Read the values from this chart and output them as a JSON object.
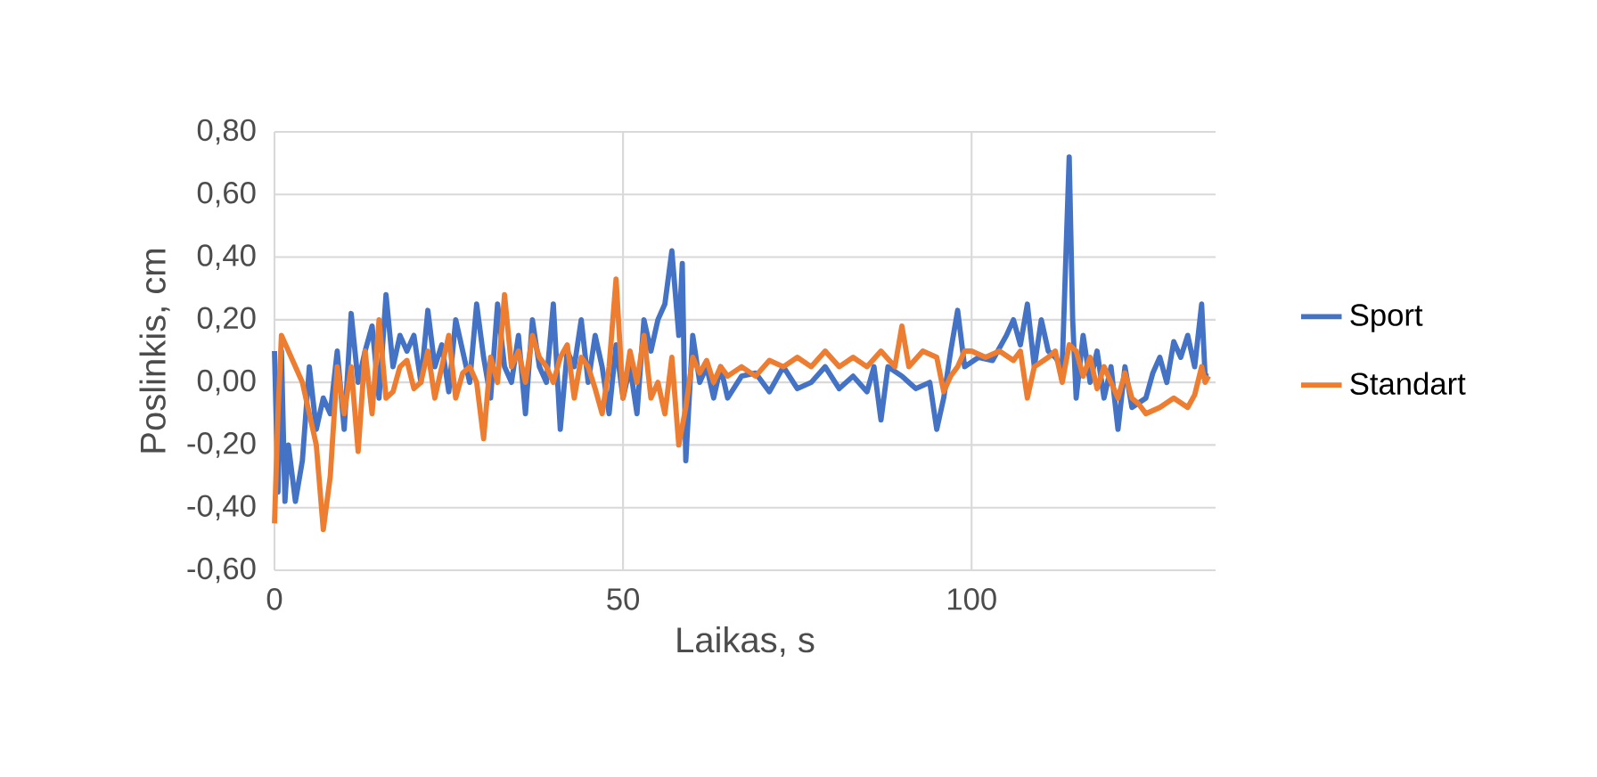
{
  "chart_data": {
    "type": "line",
    "xlabel": "Laikas, s",
    "ylabel": "Poslinkis, cm",
    "xlim": [
      0,
      135
    ],
    "xticks": [
      0,
      50,
      100
    ],
    "ylim": [
      -0.6,
      0.8
    ],
    "yticks": [
      {
        "value": -0.6,
        "label": "-0,60"
      },
      {
        "value": -0.4,
        "label": "-0,40"
      },
      {
        "value": -0.2,
        "label": "-0,20"
      },
      {
        "value": 0,
        "label": "0,00"
      },
      {
        "value": 0.2,
        "label": "0,20"
      },
      {
        "value": 0.4,
        "label": "0,40"
      },
      {
        "value": 0.6,
        "label": "0,60"
      },
      {
        "value": 0.8,
        "label": "0,80"
      }
    ],
    "grid": true,
    "legend": "right",
    "line_style": "solid",
    "marker": "none",
    "series": [
      {
        "name": "Sport",
        "color": "#4472c4",
        "x": [
          0,
          0.5,
          1,
          1.5,
          2,
          3,
          4,
          5,
          6,
          7,
          8,
          9,
          10,
          11,
          12,
          13,
          14,
          15,
          16,
          17,
          18,
          19,
          20,
          21,
          22,
          23,
          24,
          25,
          26,
          27,
          28,
          29,
          30,
          31,
          32,
          33,
          34,
          35,
          36,
          37,
          38,
          39,
          40,
          41,
          42,
          43,
          44,
          45,
          46,
          47,
          48,
          49,
          50,
          51,
          52,
          53,
          54,
          55,
          56,
          57,
          58,
          58.5,
          59,
          60,
          61,
          62,
          63,
          64,
          65,
          67,
          69,
          71,
          73,
          75,
          77,
          79,
          81,
          83,
          85,
          86,
          87,
          88,
          90,
          92,
          94,
          95,
          96,
          97,
          98,
          99,
          101,
          103,
          105,
          106,
          107,
          108,
          109,
          110,
          111,
          112,
          113,
          114,
          114.5,
          115,
          116,
          117,
          118,
          119,
          120,
          121,
          122,
          123,
          125,
          126,
          127,
          128,
          129,
          130,
          131,
          132,
          133,
          133.5,
          134
        ],
        "values": [
          0.1,
          -0.35,
          0.1,
          -0.38,
          -0.2,
          -0.38,
          -0.25,
          0.05,
          -0.15,
          -0.05,
          -0.1,
          0.1,
          -0.15,
          0.22,
          0.0,
          0.1,
          0.18,
          -0.05,
          0.28,
          0.05,
          0.15,
          0.1,
          0.15,
          0.0,
          0.23,
          0.05,
          0.12,
          -0.03,
          0.2,
          0.1,
          0.0,
          0.25,
          0.08,
          -0.05,
          0.25,
          0.05,
          0.0,
          0.15,
          -0.1,
          0.2,
          0.05,
          0.0,
          0.25,
          -0.15,
          0.1,
          0.05,
          0.2,
          0.0,
          0.15,
          0.05,
          -0.1,
          0.12,
          -0.05,
          0.05,
          -0.1,
          0.2,
          0.1,
          0.2,
          0.25,
          0.42,
          0.15,
          0.38,
          -0.25,
          0.15,
          0.0,
          0.05,
          -0.05,
          0.05,
          -0.05,
          0.02,
          0.03,
          -0.03,
          0.05,
          -0.02,
          0.0,
          0.05,
          -0.02,
          0.02,
          -0.03,
          0.05,
          -0.12,
          0.05,
          0.02,
          -0.02,
          0.0,
          -0.15,
          -0.05,
          0.1,
          0.23,
          0.05,
          0.08,
          0.07,
          0.15,
          0.2,
          0.12,
          0.25,
          0.05,
          0.2,
          0.1,
          0.08,
          0.05,
          0.72,
          0.2,
          -0.05,
          0.15,
          0.0,
          0.1,
          -0.05,
          0.05,
          -0.15,
          0.05,
          -0.08,
          -0.05,
          0.03,
          0.08,
          0.0,
          0.13,
          0.08,
          0.15,
          0.05,
          0.25,
          0.02,
          0.02
        ]
      },
      {
        "name": "Standart",
        "color": "#ed7d31",
        "x": [
          0,
          0.5,
          1,
          2,
          3,
          4,
          5,
          6,
          7,
          8,
          9,
          10,
          11,
          12,
          13,
          14,
          15,
          16,
          17,
          18,
          19,
          20,
          21,
          22,
          23,
          24,
          25,
          26,
          27,
          28,
          29,
          30,
          31,
          32,
          33,
          34,
          35,
          36,
          37,
          38,
          39,
          40,
          41,
          42,
          43,
          44,
          45,
          46,
          47,
          48,
          49,
          50,
          51,
          52,
          53,
          54,
          55,
          56,
          57,
          58,
          59,
          60,
          61,
          62,
          63,
          64,
          65,
          67,
          69,
          71,
          73,
          75,
          77,
          79,
          81,
          83,
          85,
          87,
          89,
          90,
          91,
          93,
          95,
          96,
          97,
          98,
          99,
          100,
          102,
          104,
          106,
          107,
          108,
          109,
          111,
          112,
          113,
          114,
          115,
          116,
          117,
          118,
          119,
          120,
          121,
          122,
          123,
          124,
          125,
          127,
          129,
          131,
          132,
          133,
          133.5,
          134
        ],
        "values": [
          -0.45,
          -0.1,
          0.15,
          0.1,
          0.05,
          0.0,
          -0.1,
          -0.2,
          -0.47,
          -0.3,
          0.05,
          -0.1,
          0.05,
          -0.22,
          0.1,
          -0.1,
          0.2,
          -0.05,
          -0.03,
          0.05,
          0.07,
          -0.02,
          0.0,
          0.1,
          -0.05,
          0.05,
          0.15,
          -0.05,
          0.03,
          0.05,
          0.0,
          -0.18,
          0.08,
          0.0,
          0.28,
          0.05,
          0.1,
          0.0,
          0.15,
          0.08,
          0.05,
          0.0,
          0.08,
          0.12,
          -0.05,
          0.08,
          0.05,
          -0.02,
          -0.1,
          0.05,
          0.33,
          -0.05,
          0.1,
          0.0,
          0.15,
          -0.05,
          0.0,
          -0.1,
          0.08,
          -0.2,
          -0.08,
          0.08,
          0.03,
          0.07,
          0.0,
          0.05,
          0.02,
          0.05,
          0.02,
          0.07,
          0.05,
          0.08,
          0.05,
          0.1,
          0.05,
          0.08,
          0.05,
          0.1,
          0.05,
          0.18,
          0.05,
          0.1,
          0.08,
          -0.03,
          0.02,
          0.05,
          0.1,
          0.1,
          0.08,
          0.1,
          0.07,
          0.1,
          -0.05,
          0.05,
          0.08,
          0.1,
          0.0,
          0.12,
          0.1,
          0.02,
          0.08,
          -0.02,
          0.05,
          0.0,
          -0.05,
          0.03,
          -0.05,
          -0.07,
          -0.1,
          -0.08,
          -0.05,
          -0.08,
          -0.04,
          0.05,
          0.0,
          0.02
        ]
      }
    ]
  }
}
